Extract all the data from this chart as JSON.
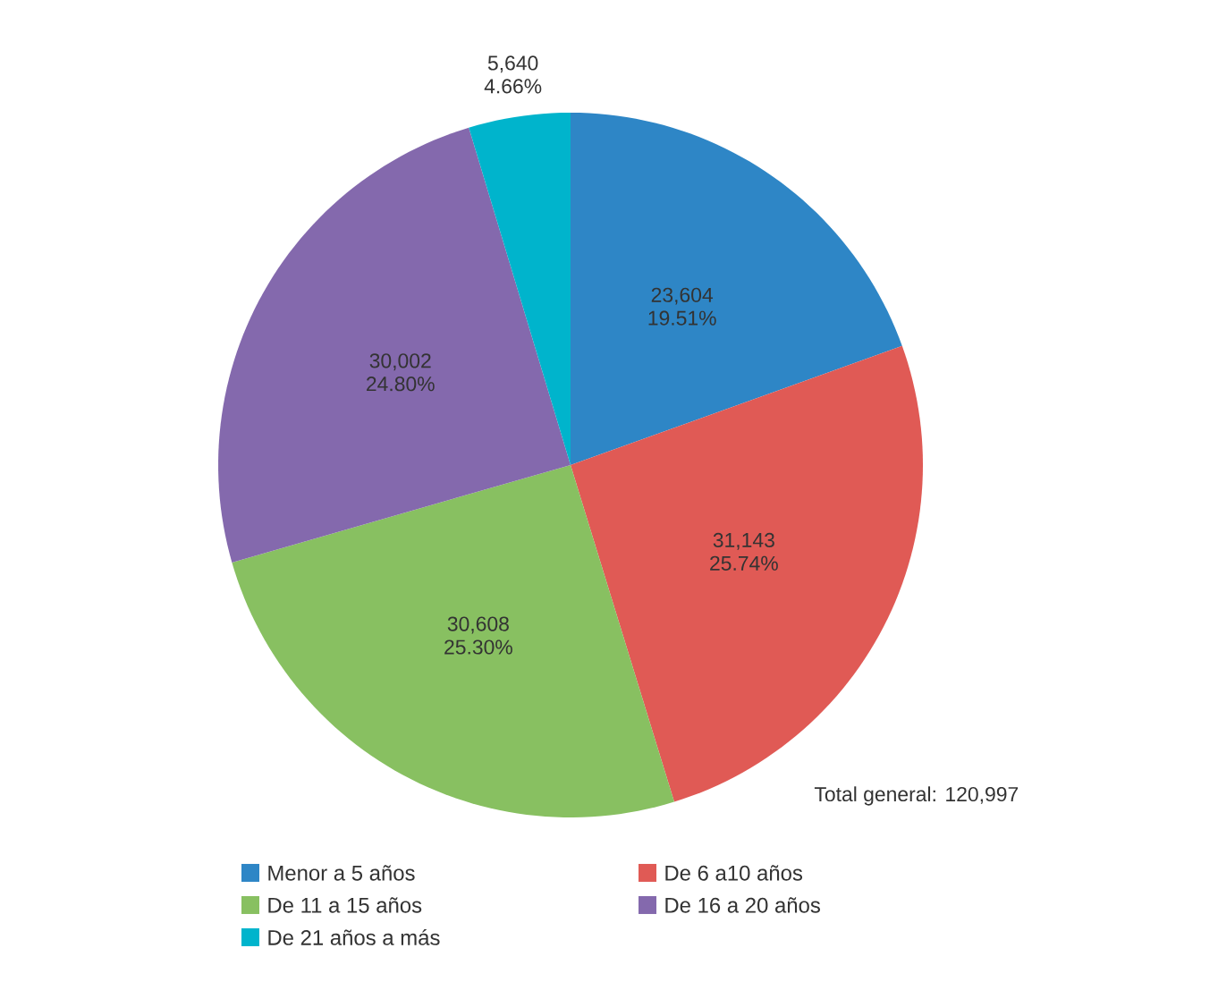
{
  "chart_data": {
    "type": "pie",
    "categories": [
      "Menor a 5 años",
      "De 6 a10 años",
      "De 11 a 15 años",
      "De 16 a 20 años",
      "De 21 años a más"
    ],
    "values": [
      23604,
      31143,
      30608,
      30002,
      5640
    ],
    "colors": [
      "#2e86c6",
      "#e05a55",
      "#88c061",
      "#8469ad",
      "#00b4cc"
    ],
    "value_labels": [
      "23,604 19.51%",
      "31,143 25.74%",
      "30,608 25.30%",
      "30,002 24.80%",
      "5,640 4.66%"
    ],
    "annotations": [
      "Total general: 120,997"
    ],
    "legend": "bottom"
  }
}
